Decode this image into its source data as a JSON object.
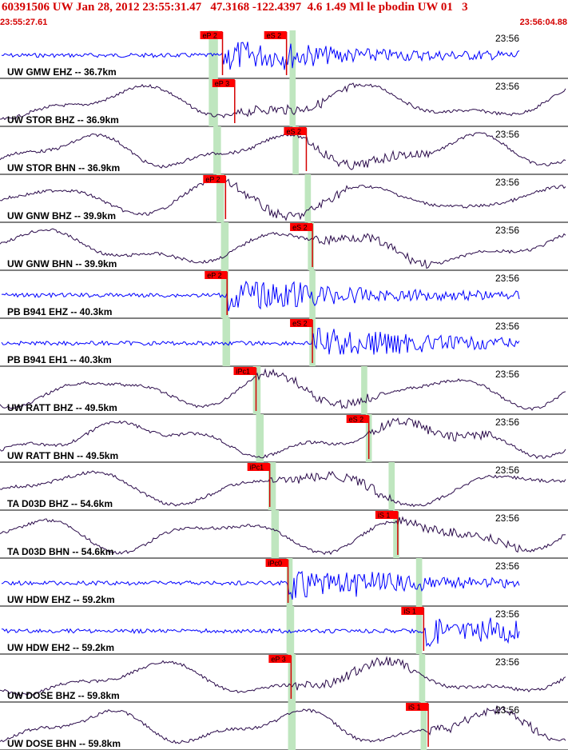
{
  "header": {
    "title": "60391506 UW Jan 28, 2012 23:55:31.47   47.3168 -122.4397  4.6 1.49 Ml le pbodin UW 01   3",
    "start_time": "23:55:27.61",
    "end_time": "23:56:04.88"
  },
  "colors": {
    "header_text": "#d40000",
    "vertical_trace": "#0000ff",
    "horizontal_trace": "#2a0a4a",
    "pick_box": "#ff0000",
    "pick_line": "#d40000",
    "window_band": "#bfe6bf",
    "label_text": "#000000",
    "divider": "#000000"
  },
  "chart_data": {
    "type": "seismogram",
    "time_range": [
      "23:55:27.61",
      "23:56:04.88"
    ],
    "minute_label": "23:56",
    "traces": [
      {
        "label": "UW GMW EHZ -- 36.7km",
        "component": "vertical",
        "picks": [
          {
            "label": "eP 2",
            "time": 14.6
          },
          {
            "label": "eS 2",
            "time": 18.8
          }
        ],
        "window": [
          13.7,
          14.3
        ],
        "window2": [
          19.0,
          19.4
        ]
      },
      {
        "label": "UW STOR BHZ -- 36.9km",
        "component": "horizontal",
        "picks": [
          {
            "label": "eP 3",
            "time": 15.4
          }
        ],
        "window": [
          13.7,
          14.3
        ],
        "window2": [
          19.0,
          19.4
        ]
      },
      {
        "label": "UW STOR BHN -- 36.9km",
        "component": "horizontal",
        "picks": [
          {
            "label": "eS 2",
            "time": 20.1
          }
        ],
        "window": [
          14.0,
          14.5
        ],
        "window2": [
          19.2,
          19.6
        ]
      },
      {
        "label": "UW GNW BHZ -- 39.9km",
        "component": "horizontal",
        "picks": [
          {
            "label": "eP 2",
            "time": 14.8
          }
        ],
        "window": [
          14.2,
          14.7
        ],
        "window2": [
          20.0,
          20.4
        ]
      },
      {
        "label": "UW GNW BHN -- 39.9km",
        "component": "horizontal",
        "picks": [
          {
            "label": "eS 2",
            "time": 20.5
          }
        ],
        "window": [
          14.5,
          15.0
        ],
        "window2": [
          20.2,
          20.6
        ]
      },
      {
        "label": "PB B941 EHZ -- 40.3km",
        "component": "vertical",
        "picks": [
          {
            "label": "eP 2",
            "time": 14.9
          }
        ],
        "window": [
          14.5,
          15.0
        ],
        "window2": [
          20.3,
          20.7
        ]
      },
      {
        "label": "PB B941 EH1 -- 40.3km",
        "component": "vertical",
        "picks": [
          {
            "label": "eS 2",
            "time": 20.5
          }
        ],
        "window": [
          14.6,
          15.1
        ],
        "window2": [
          20.3,
          20.7
        ]
      },
      {
        "label": "UW RATT BHZ -- 49.5km",
        "component": "horizontal",
        "picks": [
          {
            "label": "iPc1",
            "time": 16.8
          }
        ],
        "window": [
          16.6,
          17.1
        ],
        "window2": [
          23.7,
          24.1
        ]
      },
      {
        "label": "UW RATT BHN -- 49.5km",
        "component": "horizontal",
        "picks": [
          {
            "label": "eS 2",
            "time": 24.2
          }
        ],
        "window": [
          16.8,
          17.3
        ],
        "window2": [
          24.0,
          24.4
        ]
      },
      {
        "label": "TA D03D BHZ -- 54.6km",
        "component": "horizontal",
        "picks": [
          {
            "label": "iPc1",
            "time": 17.7
          }
        ],
        "window": [
          17.6,
          18.1
        ],
        "window2": [
          25.5,
          25.9
        ]
      },
      {
        "label": "TA D03D BHN -- 54.6km",
        "component": "horizontal",
        "picks": [
          {
            "label": "iS 1",
            "time": 26.1
          }
        ],
        "window": [
          17.8,
          18.3
        ],
        "window2": [
          25.8,
          26.2
        ]
      },
      {
        "label": "UW HDW EHZ -- 59.2km",
        "component": "vertical",
        "picks": [
          {
            "label": "iPc0",
            "time": 18.9
          }
        ],
        "window": [
          18.8,
          19.2
        ],
        "window2": [
          27.3,
          27.7
        ]
      },
      {
        "label": "UW HDW EH2 -- 59.2km",
        "component": "vertical",
        "picks": [
          {
            "label": "iS 1",
            "time": 27.8
          }
        ],
        "window": [
          18.8,
          19.3
        ],
        "window2": [
          27.3,
          27.7
        ]
      },
      {
        "label": "UW DOSE BHZ -- 59.8km",
        "component": "horizontal",
        "picks": [
          {
            "label": "eP 3",
            "time": 19.1
          }
        ],
        "window": [
          18.9,
          19.4
        ],
        "window2": [
          27.5,
          27.9
        ]
      },
      {
        "label": "UW DOSE BHN -- 59.8km",
        "component": "horizontal",
        "picks": [
          {
            "label": "iS 1",
            "time": 28.1
          }
        ],
        "window": [
          18.9,
          19.4
        ],
        "window2": [
          27.6,
          28.0
        ]
      }
    ]
  }
}
